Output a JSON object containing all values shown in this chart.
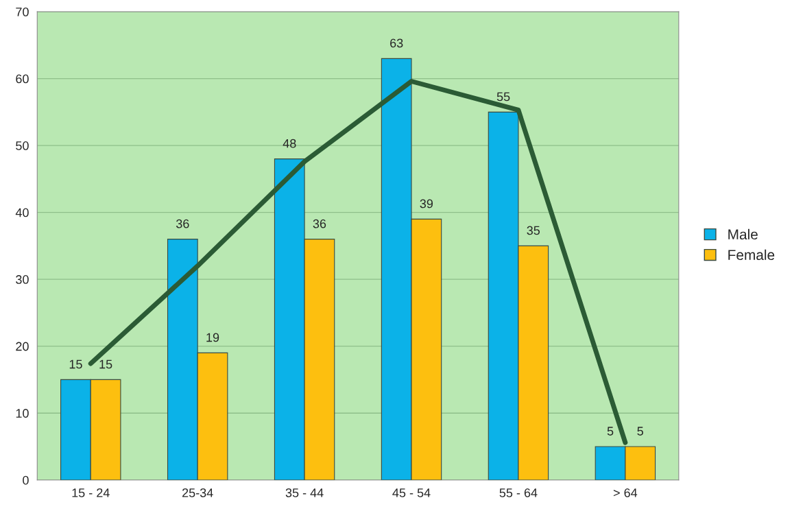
{
  "chart_data": {
    "type": "bar",
    "categories": [
      "15 - 24",
      "25-34",
      "35 - 44",
      "45 - 54",
      "55 - 64",
      "> 64"
    ],
    "series": [
      {
        "name": "Male",
        "color": "#0bb2e8",
        "values": [
          15,
          36,
          48,
          63,
          55,
          5
        ],
        "value_labels": [
          "15",
          "36",
          "48",
          "63",
          "55",
          "5"
        ]
      },
      {
        "name": "Female",
        "color": "#fdbf0f",
        "values": [
          15,
          19,
          36,
          39,
          35,
          5
        ],
        "value_labels": [
          "15",
          "19",
          "36",
          "39",
          "35",
          "5"
        ]
      },
      {
        "type": "line",
        "color": "#2b5b35",
        "values": [
          17.4,
          32,
          47.6,
          59.6,
          55.3,
          5.6
        ]
      }
    ],
    "ylim": [
      0,
      70
    ],
    "yticks": [
      0,
      10,
      20,
      30,
      40,
      50,
      60,
      70
    ],
    "grid": "y",
    "legend": "right"
  }
}
